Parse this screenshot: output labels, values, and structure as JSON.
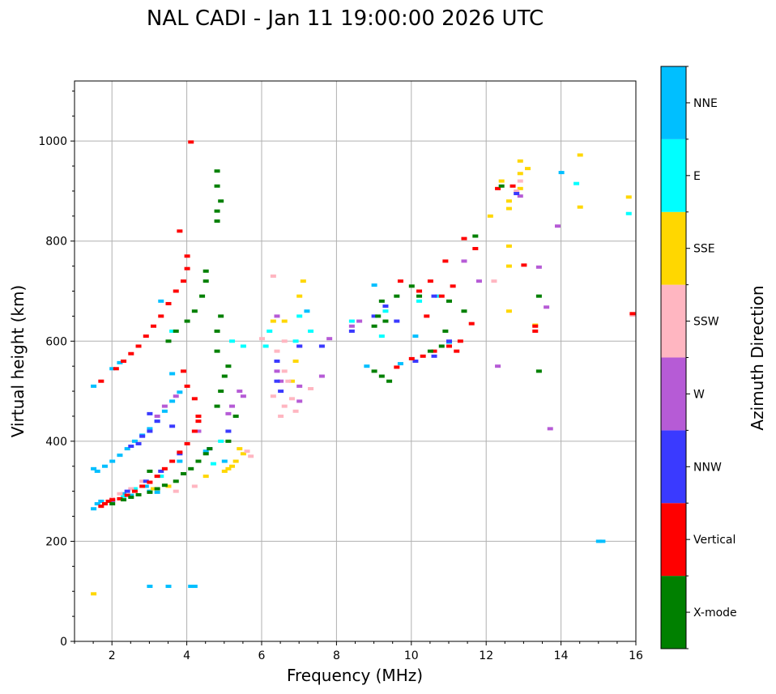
{
  "chart_data": {
    "type": "scatter",
    "title": "NAL CADI - Jan 11 19:00:00 2026 UTC",
    "xlabel": "Frequency (MHz)",
    "ylabel": "Virtual height (km)",
    "xlim": [
      1,
      16
    ],
    "ylim": [
      0,
      1120
    ],
    "xticks": [
      2,
      4,
      6,
      8,
      10,
      12,
      14,
      16
    ],
    "xtick_labels": [
      "2",
      "4",
      "6",
      "8",
      "10",
      "12",
      "14",
      "16"
    ],
    "yticks": [
      0,
      200,
      400,
      600,
      800,
      1000
    ],
    "ytick_labels": [
      "0",
      "200",
      "400",
      "600",
      "800",
      "1000"
    ],
    "grid": true,
    "colorbar": {
      "label": "Azimuth Direction",
      "categories": [
        {
          "name": "X-mode",
          "color": "#008000"
        },
        {
          "name": "Vertical",
          "color": "#ff0000"
        },
        {
          "name": "NNW",
          "color": "#3a3aff"
        },
        {
          "name": "W",
          "color": "#b65bd6"
        },
        {
          "name": "SSW",
          "color": "#ffb6c1"
        },
        {
          "name": "SSE",
          "color": "#ffd700"
        },
        {
          "name": "E",
          "color": "#00ffff"
        },
        {
          "name": "NNE",
          "color": "#00bfff"
        }
      ]
    },
    "series": [
      {
        "name": "NNE",
        "points": [
          [
            1.5,
            265
          ],
          [
            1.6,
            275
          ],
          [
            1.7,
            280
          ],
          [
            1.5,
            345
          ],
          [
            1.6,
            340
          ],
          [
            1.8,
            350
          ],
          [
            2.0,
            360
          ],
          [
            2.2,
            372
          ],
          [
            2.4,
            385
          ],
          [
            2.6,
            400
          ],
          [
            2.8,
            412
          ],
          [
            3.0,
            425
          ],
          [
            3.2,
            440
          ],
          [
            3.4,
            460
          ],
          [
            3.6,
            480
          ],
          [
            3.8,
            498
          ],
          [
            2.0,
            545
          ],
          [
            2.2,
            557
          ],
          [
            3.0,
            110
          ],
          [
            3.5,
            110
          ],
          [
            4.1,
            110
          ],
          [
            4.2,
            110
          ],
          [
            2.9,
            310
          ],
          [
            3.2,
            298
          ],
          [
            3.8,
            360
          ],
          [
            4.5,
            380
          ],
          [
            5.0,
            360
          ],
          [
            1.5,
            510
          ],
          [
            3.3,
            680
          ],
          [
            3.6,
            535
          ],
          [
            7.2,
            660
          ],
          [
            8.8,
            550
          ],
          [
            9.0,
            712
          ],
          [
            9.7,
            555
          ],
          [
            10.1,
            610
          ],
          [
            11.0,
            598
          ],
          [
            14.0,
            937
          ],
          [
            15.0,
            200
          ],
          [
            15.1,
            200
          ],
          [
            3.0,
            300
          ],
          [
            2.3,
            295
          ],
          [
            2.5,
            292
          ]
        ]
      },
      {
        "name": "E",
        "points": [
          [
            3.6,
            620
          ],
          [
            5.2,
            600
          ],
          [
            5.5,
            590
          ],
          [
            4.9,
            400
          ],
          [
            4.7,
            355
          ],
          [
            7.0,
            650
          ],
          [
            6.9,
            600
          ],
          [
            9.2,
            610
          ],
          [
            10.2,
            680
          ],
          [
            10.7,
            690
          ],
          [
            14.4,
            915
          ],
          [
            15.8,
            855
          ],
          [
            6.1,
            590
          ],
          [
            6.2,
            620
          ],
          [
            2.3,
            290
          ],
          [
            2.6,
            305
          ],
          [
            3.3,
            330
          ],
          [
            7.3,
            620
          ],
          [
            8.4,
            640
          ],
          [
            9.3,
            660
          ]
        ]
      },
      {
        "name": "SSE",
        "points": [
          [
            1.5,
            95
          ],
          [
            5.1,
            345
          ],
          [
            5.3,
            360
          ],
          [
            5.5,
            375
          ],
          [
            5.4,
            385
          ],
          [
            5.2,
            350
          ],
          [
            5.0,
            340
          ],
          [
            6.6,
            640
          ],
          [
            6.9,
            560
          ],
          [
            7.0,
            690
          ],
          [
            7.1,
            720
          ],
          [
            6.8,
            520
          ],
          [
            12.1,
            850
          ],
          [
            12.4,
            920
          ],
          [
            12.6,
            865
          ],
          [
            12.6,
            880
          ],
          [
            12.9,
            960
          ],
          [
            12.9,
            935
          ],
          [
            12.6,
            790
          ],
          [
            12.6,
            750
          ],
          [
            13.1,
            945
          ],
          [
            12.6,
            660
          ],
          [
            13.3,
            632
          ],
          [
            14.5,
            972
          ],
          [
            14.5,
            868
          ],
          [
            15.8,
            888
          ],
          [
            3.5,
            310
          ],
          [
            4.5,
            330
          ],
          [
            3.1,
            305
          ],
          [
            6.3,
            640
          ],
          [
            12.9,
            905
          ]
        ]
      },
      {
        "name": "SSW",
        "points": [
          [
            1.8,
            275
          ],
          [
            2.0,
            285
          ],
          [
            2.2,
            295
          ],
          [
            2.5,
            305
          ],
          [
            2.8,
            320
          ],
          [
            3.0,
            318
          ],
          [
            6.6,
            470
          ],
          [
            6.8,
            485
          ],
          [
            6.5,
            450
          ],
          [
            6.3,
            490
          ],
          [
            6.6,
            540
          ],
          [
            6.6,
            600
          ],
          [
            6.4,
            580
          ],
          [
            6.9,
            460
          ],
          [
            6.3,
            730
          ],
          [
            12.8,
            900
          ],
          [
            12.9,
            920
          ],
          [
            12.2,
            720
          ],
          [
            15.9,
            652
          ],
          [
            3.7,
            300
          ],
          [
            4.2,
            310
          ],
          [
            5.6,
            380
          ],
          [
            5.7,
            370
          ],
          [
            6.0,
            605
          ],
          [
            7.3,
            505
          ],
          [
            6.7,
            520
          ]
        ]
      },
      {
        "name": "W",
        "points": [
          [
            3.2,
            450
          ],
          [
            3.4,
            470
          ],
          [
            3.7,
            490
          ],
          [
            5.2,
            470
          ],
          [
            5.5,
            490
          ],
          [
            5.4,
            500
          ],
          [
            6.4,
            540
          ],
          [
            6.5,
            520
          ],
          [
            7.0,
            510
          ],
          [
            7.0,
            480
          ],
          [
            7.0,
            590
          ],
          [
            7.8,
            605
          ],
          [
            8.4,
            630
          ],
          [
            8.6,
            640
          ],
          [
            11.8,
            720
          ],
          [
            11.4,
            760
          ],
          [
            13.4,
            748
          ],
          [
            13.6,
            668
          ],
          [
            13.7,
            425
          ],
          [
            13.9,
            830
          ],
          [
            12.3,
            550
          ],
          [
            7.6,
            530
          ],
          [
            6.4,
            650
          ],
          [
            4.3,
            420
          ],
          [
            5.1,
            455
          ],
          [
            12.9,
            890
          ]
        ]
      },
      {
        "name": "NNW",
        "points": [
          [
            2.5,
            390
          ],
          [
            2.8,
            410
          ],
          [
            3.0,
            420
          ],
          [
            3.2,
            440
          ],
          [
            3.6,
            430
          ],
          [
            3.0,
            455
          ],
          [
            2.7,
            395
          ],
          [
            6.4,
            560
          ],
          [
            6.4,
            520
          ],
          [
            6.5,
            500
          ],
          [
            7.0,
            590
          ],
          [
            7.6,
            590
          ],
          [
            8.4,
            620
          ],
          [
            9.0,
            650
          ],
          [
            9.3,
            670
          ],
          [
            9.6,
            640
          ],
          [
            10.1,
            560
          ],
          [
            10.6,
            570
          ],
          [
            10.6,
            690
          ],
          [
            11.0,
            600
          ],
          [
            12.8,
            895
          ],
          [
            2.0,
            282
          ],
          [
            2.4,
            300
          ],
          [
            2.9,
            320
          ],
          [
            3.3,
            340
          ],
          [
            3.8,
            375
          ],
          [
            4.6,
            385
          ],
          [
            5.1,
            420
          ]
        ]
      },
      {
        "name": "Vertical",
        "points": [
          [
            1.7,
            270
          ],
          [
            1.8,
            275
          ],
          [
            1.9,
            280
          ],
          [
            2.0,
            283
          ],
          [
            2.2,
            285
          ],
          [
            2.4,
            292
          ],
          [
            2.6,
            300
          ],
          [
            2.8,
            310
          ],
          [
            3.0,
            318
          ],
          [
            3.2,
            330
          ],
          [
            3.4,
            345
          ],
          [
            3.6,
            360
          ],
          [
            3.8,
            378
          ],
          [
            4.0,
            395
          ],
          [
            4.2,
            420
          ],
          [
            4.3,
            440
          ],
          [
            1.7,
            520
          ],
          [
            2.1,
            545
          ],
          [
            2.3,
            560
          ],
          [
            2.5,
            575
          ],
          [
            2.7,
            590
          ],
          [
            2.9,
            610
          ],
          [
            3.1,
            630
          ],
          [
            3.3,
            650
          ],
          [
            3.5,
            675
          ],
          [
            3.7,
            700
          ],
          [
            3.9,
            720
          ],
          [
            4.0,
            745
          ],
          [
            4.0,
            770
          ],
          [
            3.8,
            820
          ],
          [
            4.1,
            998
          ],
          [
            10.0,
            565
          ],
          [
            10.3,
            570
          ],
          [
            10.6,
            580
          ],
          [
            11.0,
            590
          ],
          [
            11.3,
            600
          ],
          [
            10.2,
            700
          ],
          [
            10.5,
            720
          ],
          [
            10.8,
            690
          ],
          [
            11.1,
            710
          ],
          [
            9.6,
            548
          ],
          [
            10.9,
            760
          ],
          [
            11.4,
            805
          ],
          [
            11.7,
            785
          ],
          [
            11.6,
            635
          ],
          [
            12.3,
            905
          ],
          [
            12.7,
            910
          ],
          [
            13.3,
            630
          ],
          [
            13.3,
            620
          ],
          [
            13.0,
            752
          ],
          [
            15.9,
            655
          ],
          [
            4.3,
            450
          ],
          [
            4.2,
            485
          ],
          [
            4.0,
            510
          ],
          [
            3.9,
            540
          ],
          [
            11.2,
            580
          ],
          [
            10.4,
            650
          ],
          [
            9.7,
            720
          ]
        ]
      },
      {
        "name": "X-mode",
        "points": [
          [
            2.0,
            275
          ],
          [
            2.3,
            283
          ],
          [
            2.5,
            288
          ],
          [
            2.7,
            293
          ],
          [
            3.0,
            298
          ],
          [
            3.2,
            305
          ],
          [
            3.4,
            312
          ],
          [
            3.7,
            320
          ],
          [
            3.9,
            335
          ],
          [
            4.1,
            345
          ],
          [
            4.3,
            360
          ],
          [
            4.5,
            375
          ],
          [
            4.6,
            385
          ],
          [
            3.0,
            340
          ],
          [
            3.5,
            600
          ],
          [
            3.7,
            620
          ],
          [
            4.0,
            640
          ],
          [
            4.2,
            660
          ],
          [
            4.4,
            690
          ],
          [
            4.5,
            720
          ],
          [
            4.5,
            740
          ],
          [
            4.8,
            470
          ],
          [
            4.9,
            500
          ],
          [
            5.0,
            530
          ],
          [
            5.1,
            550
          ],
          [
            4.8,
            580
          ],
          [
            4.8,
            620
          ],
          [
            4.9,
            650
          ],
          [
            4.8,
            840
          ],
          [
            4.8,
            860
          ],
          [
            4.9,
            880
          ],
          [
            4.8,
            910
          ],
          [
            4.8,
            940
          ],
          [
            9.0,
            630
          ],
          [
            9.1,
            650
          ],
          [
            9.2,
            680
          ],
          [
            9.3,
            640
          ],
          [
            9.6,
            690
          ],
          [
            10.0,
            710
          ],
          [
            10.2,
            690
          ],
          [
            10.5,
            580
          ],
          [
            10.8,
            590
          ],
          [
            10.9,
            620
          ],
          [
            11.0,
            680
          ],
          [
            11.4,
            660
          ],
          [
            11.7,
            810
          ],
          [
            12.4,
            910
          ],
          [
            13.4,
            690
          ],
          [
            13.4,
            540
          ],
          [
            9.2,
            530
          ],
          [
            9.4,
            520
          ],
          [
            9.0,
            540
          ],
          [
            5.1,
            400
          ],
          [
            5.3,
            450
          ]
        ]
      }
    ]
  }
}
